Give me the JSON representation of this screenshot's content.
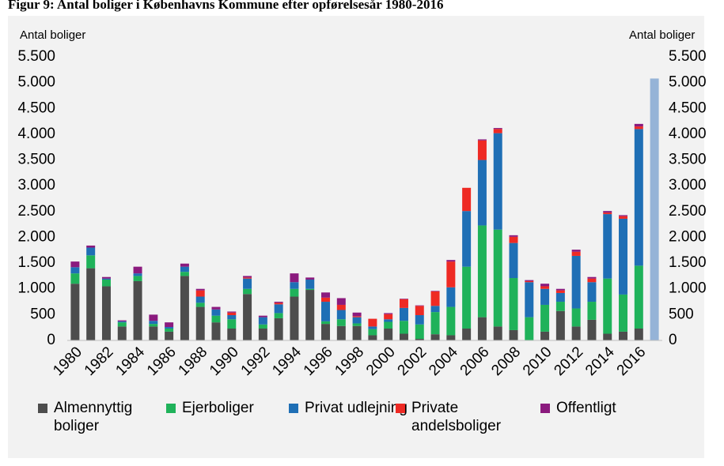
{
  "chart_data": {
    "type": "bar",
    "stacked": true,
    "title": "Figur 9: Antal boliger i Københavns Kommune efter opførelsesår 1980-2016",
    "ylabel": "Antal boliger",
    "y2label": "Antal boliger",
    "categories": [
      "1980",
      null,
      "1982",
      null,
      "1984",
      null,
      "1986",
      null,
      "1988",
      null,
      "1990",
      null,
      "1992",
      null,
      "1994",
      null,
      "1996",
      null,
      "1998",
      null,
      "2000",
      null,
      "2002",
      null,
      "2004",
      null,
      "2006",
      null,
      "2008",
      null,
      "2010",
      null,
      "2012",
      null,
      "2014",
      null,
      "2016",
      null
    ],
    "series": [
      {
        "name": "Almennyttig boliger",
        "color": "#4d4d4d",
        "values": [
          1100,
          1400,
          1050,
          270,
          1150,
          270,
          170,
          1250,
          650,
          350,
          230,
          900,
          230,
          430,
          850,
          980,
          320,
          280,
          280,
          100,
          230,
          130,
          30,
          120,
          100,
          230,
          450,
          270,
          200,
          0,
          170,
          570,
          270,
          400,
          130,
          170,
          230,
          0
        ]
      },
      {
        "name": "Ejerboliger",
        "color": "#1fb25a",
        "values": [
          200,
          250,
          130,
          80,
          100,
          50,
          60,
          80,
          80,
          130,
          180,
          100,
          80,
          100,
          150,
          20,
          50,
          130,
          50,
          120,
          130,
          250,
          280,
          430,
          550,
          1200,
          1780,
          1880,
          1010,
          450,
          520,
          180,
          350,
          350,
          1070,
          720,
          1220,
          0
        ]
      },
      {
        "name": "Privat udlejning",
        "color": "#1f6fb5",
        "values": [
          120,
          150,
          20,
          20,
          50,
          60,
          30,
          100,
          120,
          120,
          80,
          200,
          140,
          170,
          130,
          180,
          380,
          180,
          120,
          50,
          50,
          250,
          180,
          120,
          380,
          1080,
          1270,
          1870,
          680,
          680,
          310,
          170,
          1020,
          380,
          1250,
          1470,
          2650,
          0
        ]
      },
      {
        "name": "Private andelsboliger",
        "color": "#ee2a24",
        "values": [
          0,
          0,
          0,
          0,
          0,
          0,
          0,
          0,
          120,
          0,
          50,
          20,
          0,
          30,
          0,
          0,
          80,
          100,
          20,
          150,
          100,
          170,
          180,
          280,
          500,
          450,
          380,
          80,
          120,
          20,
          50,
          50,
          80,
          70,
          30,
          50,
          50,
          0
        ]
      },
      {
        "name": "Offentligt",
        "color": "#8b1a7e",
        "values": [
          110,
          40,
          30,
          20,
          130,
          120,
          90,
          60,
          30,
          50,
          20,
          30,
          30,
          20,
          170,
          40,
          100,
          130,
          70,
          0,
          20,
          10,
          10,
          10,
          30,
          0,
          20,
          20,
          30,
          20,
          50,
          30,
          40,
          30,
          30,
          20,
          50,
          0
        ]
      },
      {
        "color": "#95b3d7",
        "values": [
          null,
          null,
          null,
          null,
          null,
          null,
          null,
          null,
          null,
          null,
          null,
          null,
          null,
          null,
          null,
          null,
          null,
          null,
          null,
          null,
          null,
          null,
          null,
          null,
          null,
          null,
          null,
          null,
          null,
          null,
          null,
          null,
          null,
          null,
          null,
          null,
          null,
          5080
        ]
      }
    ],
    "ylim": [
      0,
      5500
    ],
    "yticks": [
      0,
      500,
      {
        "value": 1000,
        "label": "1.000"
      },
      {
        "value": 1500,
        "label": "1.500"
      },
      {
        "value": 2000,
        "label": "2.000"
      },
      {
        "value": 2500,
        "label": "2.500"
      },
      {
        "value": 3000,
        "label": "3.000"
      },
      {
        "value": 3500,
        "label": "3.500"
      },
      {
        "value": 4000,
        "label": "4.000"
      },
      {
        "value": 4500,
        "label": "4.500"
      },
      {
        "value": 5000,
        "label": "5.000"
      },
      {
        "value": 5500,
        "label": "5.500"
      }
    ],
    "y2lim": [
      0,
      5500
    ],
    "y2ticks": [
      0,
      500,
      {
        "value": 1000,
        "label": "1.000"
      },
      {
        "value": 1500,
        "label": "1.500"
      },
      {
        "value": 2000,
        "label": "2.000"
      },
      {
        "value": 2500,
        "label": "2.500"
      },
      {
        "value": 3000,
        "label": "3.000"
      },
      {
        "value": 3500,
        "label": "3.500"
      },
      {
        "value": 4000,
        "label": "4.000"
      },
      {
        "value": 4500,
        "label": "4.500"
      },
      {
        "value": 5000,
        "label": "5.000"
      },
      {
        "value": 5500,
        "label": "5.500"
      }
    ],
    "grid": false,
    "legend": "bottom"
  }
}
